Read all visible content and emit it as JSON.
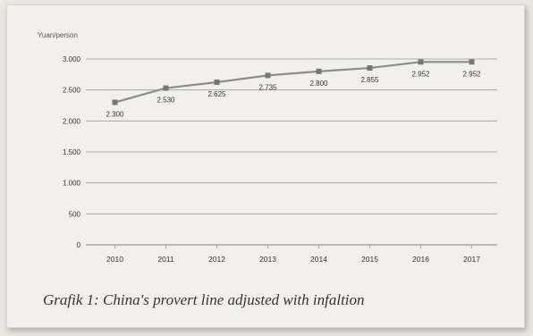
{
  "chart_data": {
    "type": "line",
    "title": "",
    "xlabel": "",
    "ylabel": "Yuan/person",
    "x": [
      "2010",
      "2011",
      "2012",
      "2013",
      "2014",
      "2015",
      "2016",
      "2017"
    ],
    "series": [
      {
        "values": [
          2300,
          2530,
          2625,
          2735,
          2800,
          2855,
          2952,
          2952
        ]
      }
    ],
    "data_labels": [
      "2.300",
      "2.530",
      "2.625",
      "2.735",
      "2.800",
      "2.855",
      "2.952",
      "2.952"
    ],
    "yticks": [
      0,
      500,
      1000,
      1500,
      2000,
      2500,
      3000
    ],
    "ytick_labels": [
      "0",
      "500",
      "1.000",
      "1.500",
      "2.000",
      "2.500",
      "3.000"
    ],
    "ylim": [
      0,
      3000
    ],
    "grid": true,
    "legend": "none",
    "colors": {
      "line": "#8c8c8c",
      "marker": "#777777",
      "grid": "#9a9a9a",
      "text": "#555555"
    }
  },
  "caption": "Grafik 1: China's provert line adjusted with infaltion"
}
